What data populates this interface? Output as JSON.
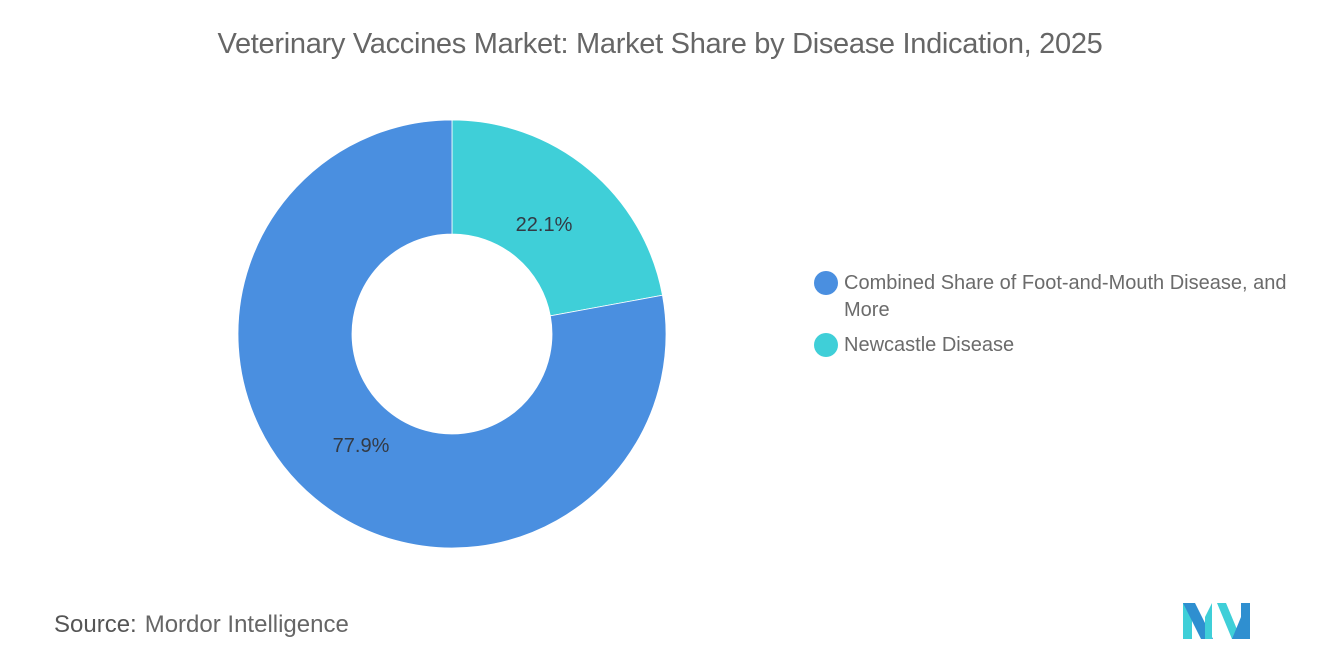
{
  "title": "Veterinary Vaccines Market: Market Share by Disease Indication, 2025",
  "source": {
    "label": "Source:",
    "value": "Mordor Intelligence"
  },
  "legend": {
    "items": [
      {
        "label": "Combined Share of Foot-and-Mouth Disease, and More",
        "color": "#4a8fe0"
      },
      {
        "label": "Newcastle Disease",
        "color": "#3fcfd8"
      }
    ]
  },
  "labels": {
    "slice0": "77.9%",
    "slice1": "22.1%"
  },
  "colors": {
    "blue": "#4a8fe0",
    "teal": "#3fcfd8",
    "title": "#666666",
    "label_text": "#333a44"
  },
  "chart_data": {
    "type": "pie",
    "subtype": "donut",
    "title": "Veterinary Vaccines Market: Market Share by Disease Indication, 2025",
    "categories": [
      "Combined Share of Foot-and-Mouth Disease, and More",
      "Newcastle Disease"
    ],
    "values": [
      77.9,
      22.1
    ],
    "unit": "%",
    "legend_position": "right",
    "source": "Mordor Intelligence"
  }
}
